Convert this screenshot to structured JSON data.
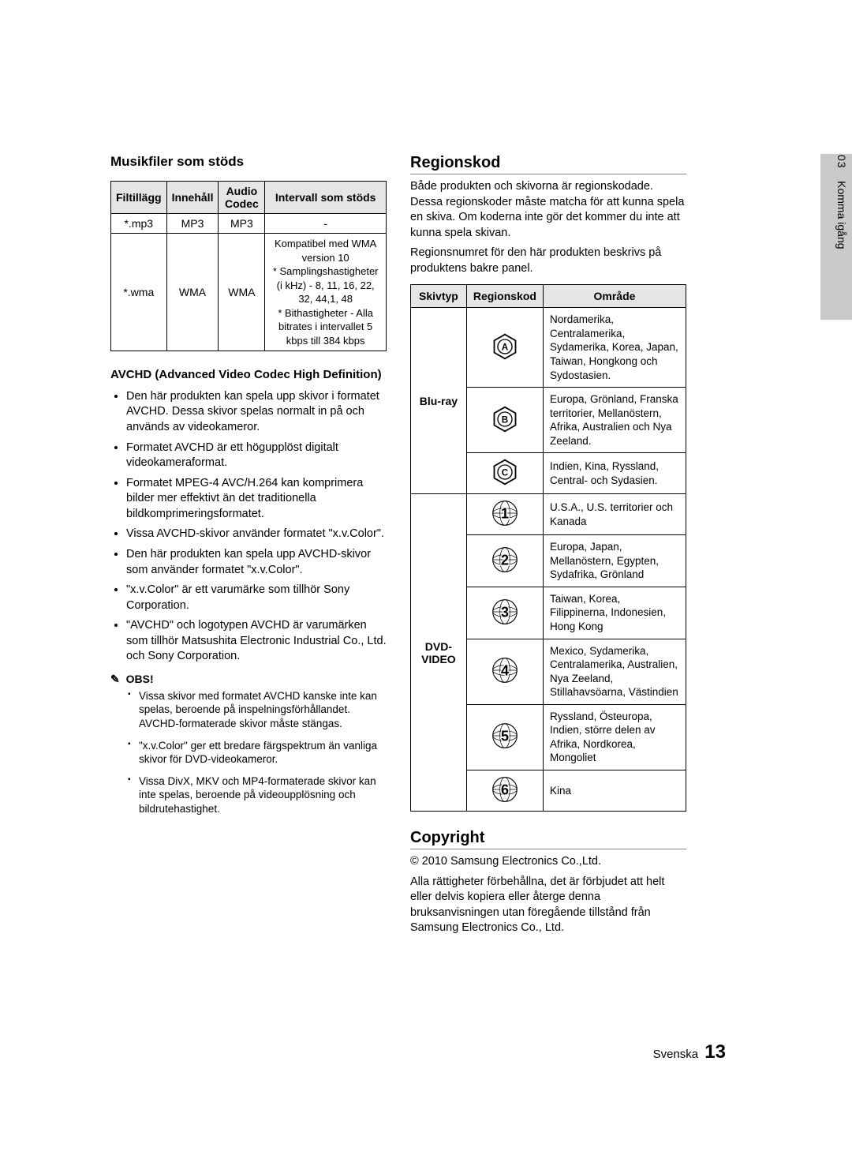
{
  "sideTab": {
    "number": "03",
    "label": "Komma igång"
  },
  "left": {
    "music_title": "Musikfiler som stöds",
    "table": {
      "headers": [
        "Filtillägg",
        "Innehåll",
        "Audio Codec",
        "Intervall som stöds"
      ],
      "row_mp3": {
        "ext": "*.mp3",
        "content": "MP3",
        "codec": "MP3",
        "interval": "-"
      },
      "row_wma": {
        "ext": "*.wma",
        "content": "WMA",
        "codec": "WMA",
        "interval_line1": "Kompatibel med WMA version 10",
        "interval_line2": "* Samplingshastigheter (i kHz) - 8, 11, 16, 22, 32, 44,1, 48",
        "interval_line3": "* Bithastigheter - Alla bitrates i intervallet 5 kbps till 384 kbps"
      }
    },
    "avchd_title": "AVCHD (Advanced Video Codec High Definition)",
    "bullets": [
      "Den här produkten kan spela upp skivor i formatet AVCHD. Dessa skivor spelas normalt in på och används av videokameror.",
      "Formatet AVCHD är ett högupplöst digitalt videokameraformat.",
      "Formatet MPEG-4 AVC/H.264 kan komprimera bilder mer effektivt än det traditionella bildkomprimeringsformatet.",
      "Vissa AVCHD-skivor använder formatet \"x.v.Color\".",
      "Den här produkten kan spela upp AVCHD-skivor som använder formatet \"x.v.Color\".",
      "\"x.v.Color\" är ett varumärke som tillhör Sony Corporation.",
      "\"AVCHD\" och logotypen AVCHD är varumärken som tillhör Matsushita Electronic Industrial Co., Ltd. och Sony Corporation."
    ],
    "obs_label": "OBS!",
    "notes": [
      "Vissa skivor med formatet AVCHD kanske inte kan spelas, beroende på inspelningsförhållandet. AVCHD-formaterade skivor måste stängas.",
      "\"x.v.Color\" ger ett bredare färgspektrum än vanliga skivor för DVD-videokameror.",
      "Vissa DivX, MKV och MP4-formaterade skivor kan inte spelas, beroende på videoupplösning och bildrutehastighet."
    ]
  },
  "right": {
    "region_title": "Regionskod",
    "region_p1": "Både produkten och skivorna är regionskodade. Dessa regionskoder måste matcha för att kunna spela en skiva. Om koderna inte gör det kommer du inte att kunna spela skivan.",
    "region_p2": "Regionsnumret för den här produkten beskrivs på produktens bakre panel.",
    "region_table": {
      "headers": [
        "Skivtyp",
        "Regionskod",
        "Område"
      ],
      "bluray_label": "Blu-ray",
      "bluray_rows": [
        {
          "code": "A",
          "area": "Nordamerika, Centralamerika, Sydamerika, Korea, Japan, Taiwan, Hongkong och Sydostasien."
        },
        {
          "code": "B",
          "area": "Europa, Grönland, Franska territorier, Mellanöstern, Afrika, Australien och Nya Zeeland."
        },
        {
          "code": "C",
          "area": "Indien, Kina, Ryssland, Central- och Sydasien."
        }
      ],
      "dvd_label": "DVD-VIDEO",
      "dvd_rows": [
        {
          "code": "1",
          "area": "U.S.A., U.S. territorier och Kanada"
        },
        {
          "code": "2",
          "area": "Europa, Japan, Mellanöstern, Egypten, Sydafrika, Grönland"
        },
        {
          "code": "3",
          "area": "Taiwan, Korea, Filippinerna, Indonesien, Hong Kong"
        },
        {
          "code": "4",
          "area": "Mexico, Sydamerika, Centralamerika, Australien, Nya Zeeland, Stillahavsöarna, Västindien"
        },
        {
          "code": "5",
          "area": "Ryssland, Östeuropa, Indien, större delen av Afrika, Nordkorea, Mongoliet"
        },
        {
          "code": "6",
          "area": "Kina"
        }
      ]
    },
    "copyright_title": "Copyright",
    "copyright_p1": "© 2010 Samsung Electronics Co.,Ltd.",
    "copyright_p2": "Alla rättigheter förbehållna, det är förbjudet att helt eller delvis kopiera eller återge denna bruksanvisningen utan föregående tillstånd från Samsung Electronics Co., Ltd."
  },
  "footer": {
    "lang": "Svenska",
    "page": "13"
  }
}
